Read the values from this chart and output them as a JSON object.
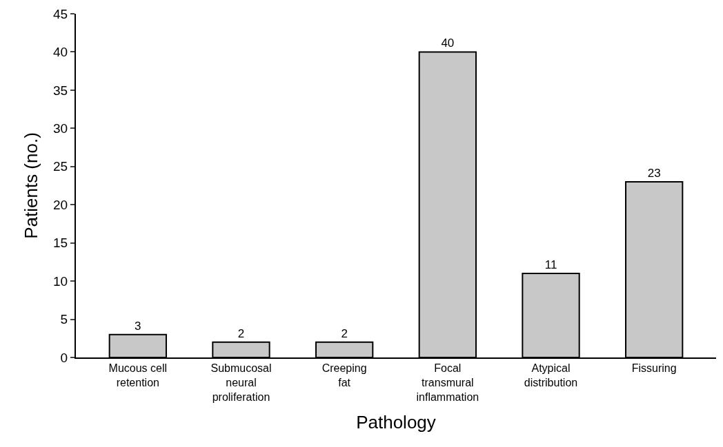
{
  "chart_data": {
    "type": "bar",
    "xlabel": "Pathology",
    "ylabel": "Patients (no.)",
    "categories": [
      "Mucous cell retention",
      "Submucosal neural proliferation",
      "Creeping fat",
      "Focal transmural inflammation",
      "Atypical distribution",
      "Fissuring"
    ],
    "values": [
      3,
      2,
      2,
      40,
      11,
      23
    ],
    "color": "#c8c8c8",
    "ylim": [
      0,
      45
    ],
    "yticks": [
      0,
      5,
      10,
      15,
      20,
      25,
      30,
      35,
      40,
      45
    ],
    "legend": false,
    "data_labels": true
  }
}
